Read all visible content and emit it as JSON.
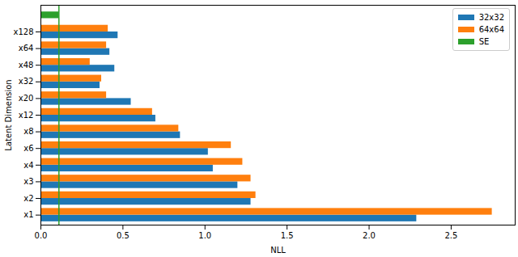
{
  "chart_data": {
    "type": "bar",
    "orientation": "horizontal",
    "xlabel": "NLL",
    "ylabel": "Latent Dimension",
    "categories": [
      "x1",
      "x2",
      "x3",
      "x4",
      "x6",
      "x8",
      "x12",
      "x20",
      "x32",
      "x48",
      "x64",
      "x128",
      null
    ],
    "series": [
      {
        "name": "32x32",
        "color": "#1f77b4",
        "values": [
          2.29,
          1.28,
          1.2,
          1.05,
          1.02,
          0.85,
          0.7,
          0.55,
          0.36,
          0.45,
          0.42,
          0.47,
          null
        ]
      },
      {
        "name": "64x64",
        "color": "#ff7f0e",
        "values": [
          2.75,
          1.31,
          1.28,
          1.23,
          1.16,
          0.84,
          0.68,
          0.4,
          0.37,
          0.3,
          0.4,
          0.41,
          null
        ]
      },
      {
        "name": "SE",
        "color": "#2ca02c",
        "line_style": "dashed",
        "values": [
          null,
          null,
          null,
          null,
          null,
          null,
          null,
          null,
          null,
          null,
          null,
          null,
          0.11
        ]
      }
    ],
    "xlim": [
      0,
      2.89
    ],
    "xticks": [
      {
        "value": 0,
        "label": "0.0"
      },
      {
        "value": 0.5,
        "label": "0.5"
      },
      {
        "value": 1,
        "label": "1.0"
      },
      {
        "value": 1.5,
        "label": "1.5"
      },
      {
        "value": 2,
        "label": "2.0"
      },
      {
        "value": 2.5,
        "label": "2.5"
      }
    ],
    "legend": "upper right",
    "grid": false
  }
}
